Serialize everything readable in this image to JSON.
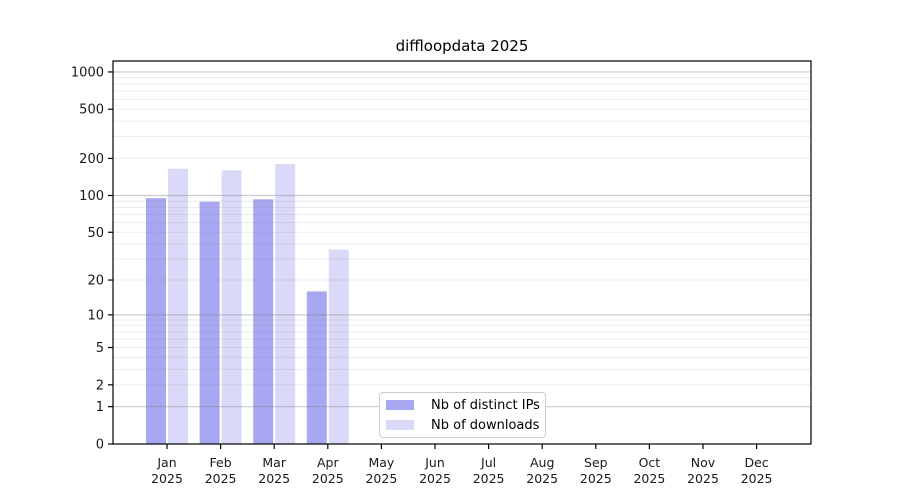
{
  "chart_data": {
    "type": "bar",
    "title": "diffloopdata 2025",
    "categories": [
      "Jan",
      "Feb",
      "Mar",
      "Apr",
      "May",
      "Jun",
      "Jul",
      "Aug",
      "Sep",
      "Oct",
      "Nov",
      "Dec"
    ],
    "category_year": "2025",
    "series": [
      {
        "name": "Nb of distinct IPs",
        "color": "#a7a7f2",
        "values": [
          95,
          89,
          93,
          16,
          0,
          0,
          0,
          0,
          0,
          0,
          0,
          0
        ]
      },
      {
        "name": "Nb of downloads",
        "color": "#dadaf8",
        "values": [
          165,
          160,
          180,
          36,
          0,
          0,
          0,
          0,
          0,
          0,
          0,
          0
        ]
      }
    ],
    "xlabel": "",
    "ylabel": "",
    "yscale": "log1p",
    "y_ticks": [
      0,
      1,
      2,
      5,
      10,
      20,
      50,
      100,
      200,
      500,
      1000
    ],
    "ylim": [
      0,
      1240
    ],
    "grid": "horizontal major+minor, drawn over bars",
    "legend_position": "inside bottom-center"
  },
  "colors": {
    "major_grid": "rgba(128,128,128,0.40)",
    "minor_grid": "rgba(128,128,128,0.16)",
    "spine": "#000000",
    "text": "#1a1a1a"
  }
}
